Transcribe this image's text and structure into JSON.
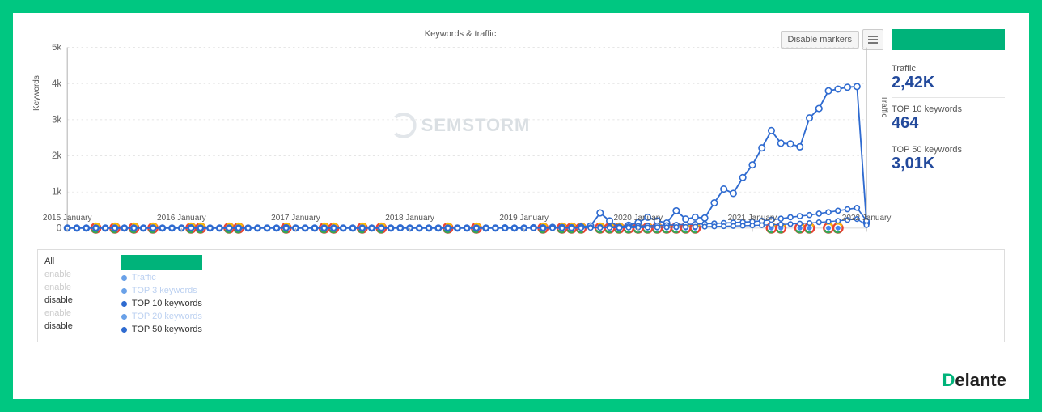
{
  "chart": {
    "type": "line",
    "title": "Keywords & traffic",
    "y_label": "Keywords",
    "y2_label": "Traffic",
    "ylim": [
      0,
      5000
    ],
    "yticks": [
      0,
      1000,
      2000,
      3000,
      4000,
      5000
    ],
    "ytick_labels": [
      "0",
      "1k",
      "2k",
      "3k",
      "4k",
      "5k"
    ],
    "x_range": [
      "2015-01",
      "2022-01"
    ],
    "x_ticks": [
      "2015 January",
      "2016 January",
      "2017 January",
      "2018 January",
      "2019 January",
      "2020 January",
      "2021 January",
      "2022 January"
    ],
    "background_color": "#ffffff",
    "grid_color": "#dddddd",
    "axis_color": "#bbbbbb",
    "axis_font_size": 10,
    "watermark": "SEMSTORM",
    "toolbar": {
      "disable_markers": "Disable markers"
    },
    "series": [
      {
        "name": "Traffic",
        "color": "#2f6bd0",
        "markers": true,
        "marker_size": 3.2,
        "line_width": 1.6,
        "data": [
          0,
          0,
          0,
          0,
          0,
          0,
          0,
          0,
          0,
          0,
          0,
          0,
          0,
          5,
          0,
          0,
          0,
          0,
          0,
          0,
          0,
          0,
          0,
          10,
          0,
          0,
          0,
          0,
          0,
          0,
          0,
          0,
          0,
          0,
          0,
          5,
          0,
          0,
          0,
          0,
          0,
          0,
          0,
          0,
          0,
          0,
          5,
          0,
          0,
          10,
          5,
          20,
          15,
          10,
          30,
          60,
          420,
          200,
          20,
          80,
          150,
          300,
          200,
          140,
          480,
          250,
          300,
          280,
          700,
          1080,
          960,
          1400,
          1750,
          2220,
          2700,
          2350,
          2330,
          2250,
          3050,
          3310,
          3800,
          3850,
          3900,
          3920,
          150
        ]
      },
      {
        "name": "TOP 50 keywords",
        "color": "#2f6bd0",
        "markers": true,
        "marker_size": 2.6,
        "line_width": 1.4,
        "data": [
          0,
          0,
          0,
          0,
          0,
          0,
          0,
          0,
          0,
          0,
          0,
          0,
          0,
          0,
          0,
          0,
          0,
          0,
          0,
          0,
          0,
          0,
          0,
          0,
          0,
          0,
          0,
          0,
          0,
          0,
          0,
          0,
          0,
          0,
          0,
          0,
          0,
          0,
          0,
          0,
          0,
          0,
          0,
          0,
          0,
          0,
          0,
          0,
          0,
          0,
          0,
          5,
          8,
          10,
          12,
          16,
          24,
          30,
          36,
          44,
          52,
          60,
          70,
          78,
          90,
          100,
          110,
          118,
          128,
          140,
          150,
          165,
          180,
          200,
          230,
          260,
          300,
          330,
          360,
          400,
          440,
          480,
          520,
          560,
          200
        ]
      },
      {
        "name": "TOP 10 keywords",
        "color": "#2f6bd0",
        "markers": true,
        "marker_size": 2.4,
        "line_width": 1.2,
        "data": [
          0,
          0,
          0,
          0,
          0,
          0,
          0,
          0,
          0,
          0,
          0,
          0,
          0,
          0,
          0,
          0,
          0,
          0,
          0,
          0,
          0,
          0,
          0,
          0,
          0,
          0,
          0,
          0,
          0,
          0,
          0,
          0,
          0,
          0,
          0,
          0,
          0,
          0,
          0,
          0,
          0,
          0,
          0,
          0,
          0,
          0,
          0,
          0,
          0,
          0,
          0,
          0,
          0,
          0,
          2,
          4,
          6,
          8,
          10,
          12,
          14,
          16,
          20,
          22,
          26,
          30,
          34,
          38,
          44,
          50,
          56,
          64,
          72,
          80,
          90,
          100,
          112,
          124,
          140,
          160,
          180,
          200,
          225,
          250,
          80
        ]
      }
    ],
    "google_markers_at": [
      3,
      5,
      7,
      9,
      13,
      14,
      17,
      18,
      23,
      27,
      28,
      31,
      33,
      40,
      43,
      50,
      52,
      53,
      54,
      56,
      57,
      58,
      59,
      60,
      61,
      62,
      63,
      64,
      65,
      66,
      74,
      75,
      77,
      78,
      80,
      81
    ]
  },
  "stats": {
    "traffic": {
      "label": "Traffic",
      "value": "2,42K"
    },
    "top10": {
      "label": "TOP 10 keywords",
      "value": "464"
    },
    "top50": {
      "label": "TOP 50 keywords",
      "value": "3,01K"
    }
  },
  "legend": {
    "left": [
      {
        "text": "All",
        "muted": false
      },
      {
        "text": "enable",
        "muted": true
      },
      {
        "text": "enable",
        "muted": true
      },
      {
        "text": "disable",
        "muted": false
      },
      {
        "text": "enable",
        "muted": true
      },
      {
        "text": "disable",
        "muted": false
      }
    ],
    "series": [
      {
        "label": "Traffic",
        "color": "#6aa1e8",
        "muted": true
      },
      {
        "label": "TOP 3 keywords",
        "color": "#6aa1e8",
        "muted": true
      },
      {
        "label": "TOP 10 keywords",
        "color": "#2f6bd0",
        "muted": false
      },
      {
        "label": "TOP 20 keywords",
        "color": "#6aa1e8",
        "muted": true
      },
      {
        "label": "TOP 50 keywords",
        "color": "#2f6bd0",
        "muted": false
      }
    ]
  },
  "colors": {
    "frame": "#00c781",
    "accent_green": "#00b37a",
    "primary_blue": "#2f6bd0",
    "text": "#333333",
    "muted": "#cccccc",
    "stat_value": "#234a9c"
  },
  "brand": {
    "pre": "D",
    "rest": "elante"
  }
}
